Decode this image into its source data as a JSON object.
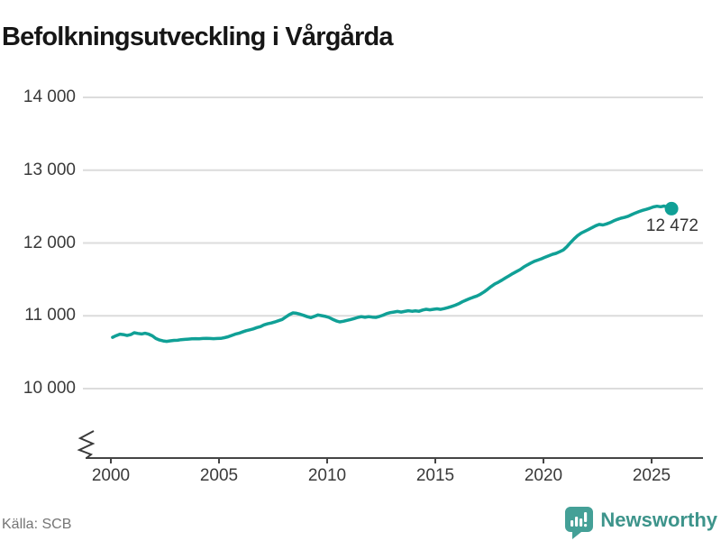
{
  "title": "Befolkningsutveckling i Vårgårda",
  "footer": {
    "source": "Källa: SCB",
    "brand": "Newsworthy"
  },
  "colors": {
    "line": "#10a096",
    "grid": "#dcdcdc",
    "axis": "#454545",
    "tick_text": "#3a3a3a",
    "annotation_text": "#333333",
    "source_text": "#757575",
    "brand_teal": "#3d948b",
    "logo_fill": "#44a097"
  },
  "chart_data": {
    "type": "line",
    "title": "Befolkningsutveckling i Vårgårda",
    "xlabel": "",
    "ylabel": "",
    "x_range": [
      1999.2,
      2027.4
    ],
    "ylim": [
      10000,
      14000
    ],
    "axis_break_at_bottom": true,
    "grid": "horizontal-only",
    "legend": "none",
    "y_ticks": [
      {
        "value": 10000,
        "label": "10 000"
      },
      {
        "value": 11000,
        "label": "11 000"
      },
      {
        "value": 12000,
        "label": "12 000"
      },
      {
        "value": 13000,
        "label": "13 000"
      },
      {
        "value": 14000,
        "label": "14 000"
      }
    ],
    "x_ticks": [
      {
        "value": 2000,
        "label": "2000"
      },
      {
        "value": 2005,
        "label": "2005"
      },
      {
        "value": 2010,
        "label": "2010"
      },
      {
        "value": 2015,
        "label": "2015"
      },
      {
        "value": 2020,
        "label": "2020"
      },
      {
        "value": 2025,
        "label": "2025"
      }
    ],
    "end_point_label": "12 472",
    "end_value": 12472,
    "series": [
      {
        "name": "Befolkning",
        "points": [
          [
            2000.08,
            10705
          ],
          [
            2000.25,
            10728
          ],
          [
            2000.42,
            10748
          ],
          [
            2000.58,
            10742
          ],
          [
            2000.75,
            10730
          ],
          [
            2000.92,
            10742
          ],
          [
            2001.08,
            10768
          ],
          [
            2001.25,
            10758
          ],
          [
            2001.42,
            10750
          ],
          [
            2001.58,
            10760
          ],
          [
            2001.75,
            10748
          ],
          [
            2001.92,
            10725
          ],
          [
            2002.08,
            10688
          ],
          [
            2002.25,
            10668
          ],
          [
            2002.42,
            10655
          ],
          [
            2002.58,
            10649
          ],
          [
            2002.75,
            10656
          ],
          [
            2002.92,
            10662
          ],
          [
            2003.08,
            10664
          ],
          [
            2003.25,
            10672
          ],
          [
            2003.42,
            10676
          ],
          [
            2003.58,
            10680
          ],
          [
            2003.75,
            10683
          ],
          [
            2003.92,
            10686
          ],
          [
            2004.08,
            10684
          ],
          [
            2004.25,
            10688
          ],
          [
            2004.42,
            10690
          ],
          [
            2004.58,
            10689
          ],
          [
            2004.75,
            10686
          ],
          [
            2004.92,
            10688
          ],
          [
            2005.08,
            10690
          ],
          [
            2005.25,
            10700
          ],
          [
            2005.42,
            10712
          ],
          [
            2005.58,
            10730
          ],
          [
            2005.75,
            10748
          ],
          [
            2005.92,
            10760
          ],
          [
            2006.08,
            10778
          ],
          [
            2006.25,
            10795
          ],
          [
            2006.42,
            10808
          ],
          [
            2006.58,
            10820
          ],
          [
            2006.75,
            10838
          ],
          [
            2006.92,
            10852
          ],
          [
            2007.08,
            10875
          ],
          [
            2007.25,
            10890
          ],
          [
            2007.42,
            10902
          ],
          [
            2007.58,
            10915
          ],
          [
            2007.75,
            10932
          ],
          [
            2007.92,
            10950
          ],
          [
            2008.08,
            10982
          ],
          [
            2008.25,
            11015
          ],
          [
            2008.42,
            11040
          ],
          [
            2008.58,
            11035
          ],
          [
            2008.75,
            11022
          ],
          [
            2008.92,
            11005
          ],
          [
            2009.08,
            10988
          ],
          [
            2009.25,
            10975
          ],
          [
            2009.42,
            10995
          ],
          [
            2009.58,
            11012
          ],
          [
            2009.75,
            11002
          ],
          [
            2009.92,
            10992
          ],
          [
            2010.08,
            10978
          ],
          [
            2010.25,
            10952
          ],
          [
            2010.42,
            10930
          ],
          [
            2010.58,
            10916
          ],
          [
            2010.75,
            10925
          ],
          [
            2010.92,
            10938
          ],
          [
            2011.08,
            10948
          ],
          [
            2011.25,
            10962
          ],
          [
            2011.42,
            10978
          ],
          [
            2011.58,
            10988
          ],
          [
            2011.75,
            10980
          ],
          [
            2011.92,
            10988
          ],
          [
            2012.08,
            10982
          ],
          [
            2012.25,
            10978
          ],
          [
            2012.42,
            10992
          ],
          [
            2012.58,
            11008
          ],
          [
            2012.75,
            11030
          ],
          [
            2012.92,
            11044
          ],
          [
            2013.08,
            11052
          ],
          [
            2013.25,
            11060
          ],
          [
            2013.42,
            11052
          ],
          [
            2013.58,
            11060
          ],
          [
            2013.75,
            11070
          ],
          [
            2013.92,
            11062
          ],
          [
            2014.08,
            11068
          ],
          [
            2014.25,
            11062
          ],
          [
            2014.42,
            11080
          ],
          [
            2014.58,
            11090
          ],
          [
            2014.75,
            11082
          ],
          [
            2014.92,
            11090
          ],
          [
            2015.08,
            11096
          ],
          [
            2015.25,
            11088
          ],
          [
            2015.42,
            11100
          ],
          [
            2015.58,
            11112
          ],
          [
            2015.75,
            11128
          ],
          [
            2015.92,
            11145
          ],
          [
            2016.08,
            11165
          ],
          [
            2016.25,
            11192
          ],
          [
            2016.42,
            11215
          ],
          [
            2016.58,
            11235
          ],
          [
            2016.75,
            11255
          ],
          [
            2016.92,
            11272
          ],
          [
            2017.08,
            11295
          ],
          [
            2017.25,
            11328
          ],
          [
            2017.42,
            11365
          ],
          [
            2017.58,
            11402
          ],
          [
            2017.75,
            11438
          ],
          [
            2017.92,
            11462
          ],
          [
            2018.08,
            11490
          ],
          [
            2018.25,
            11522
          ],
          [
            2018.42,
            11552
          ],
          [
            2018.58,
            11580
          ],
          [
            2018.75,
            11608
          ],
          [
            2018.92,
            11635
          ],
          [
            2019.08,
            11668
          ],
          [
            2019.25,
            11698
          ],
          [
            2019.42,
            11725
          ],
          [
            2019.58,
            11748
          ],
          [
            2019.75,
            11766
          ],
          [
            2019.92,
            11785
          ],
          [
            2020.08,
            11805
          ],
          [
            2020.25,
            11826
          ],
          [
            2020.42,
            11845
          ],
          [
            2020.58,
            11858
          ],
          [
            2020.75,
            11880
          ],
          [
            2020.92,
            11905
          ],
          [
            2021.08,
            11948
          ],
          [
            2021.25,
            12005
          ],
          [
            2021.42,
            12058
          ],
          [
            2021.58,
            12102
          ],
          [
            2021.75,
            12138
          ],
          [
            2021.92,
            12162
          ],
          [
            2022.08,
            12185
          ],
          [
            2022.25,
            12212
          ],
          [
            2022.42,
            12238
          ],
          [
            2022.58,
            12255
          ],
          [
            2022.75,
            12248
          ],
          [
            2022.92,
            12262
          ],
          [
            2023.08,
            12280
          ],
          [
            2023.25,
            12305
          ],
          [
            2023.42,
            12325
          ],
          [
            2023.58,
            12340
          ],
          [
            2023.75,
            12352
          ],
          [
            2023.92,
            12368
          ],
          [
            2024.08,
            12390
          ],
          [
            2024.25,
            12412
          ],
          [
            2024.42,
            12432
          ],
          [
            2024.58,
            12448
          ],
          [
            2024.75,
            12462
          ],
          [
            2024.92,
            12478
          ],
          [
            2025.08,
            12495
          ],
          [
            2025.25,
            12505
          ],
          [
            2025.42,
            12498
          ],
          [
            2025.58,
            12508
          ],
          [
            2025.75,
            12492
          ],
          [
            2025.92,
            12472
          ]
        ]
      }
    ]
  }
}
